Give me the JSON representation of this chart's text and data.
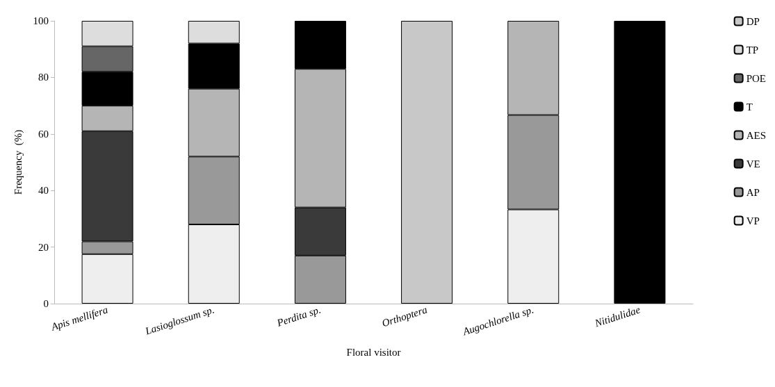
{
  "chart_data": {
    "type": "bar",
    "stacked": true,
    "xlabel": "Floral visitor",
    "ylabel": "Frequency  (%)",
    "categories": [
      "Apis mellifera",
      "Lasioglossum sp.",
      "Perdita sp.",
      "Orthoptera",
      "Augochlorella sp.",
      "Nitidulidae"
    ],
    "series": [
      {
        "name": "VP",
        "color": "#eeeeee",
        "values": [
          17.5,
          28,
          0,
          0,
          33.3,
          0
        ]
      },
      {
        "name": "AP",
        "color": "#999999",
        "values": [
          4.5,
          24,
          17,
          0,
          33.4,
          0
        ]
      },
      {
        "name": "VE",
        "color": "#3a3a3a",
        "values": [
          39,
          0,
          17,
          0,
          0,
          0
        ]
      },
      {
        "name": "AES",
        "color": "#b5b5b5",
        "values": [
          9,
          24,
          49,
          0,
          33.3,
          0
        ]
      },
      {
        "name": "T",
        "color": "#000000",
        "values": [
          12,
          16,
          17,
          0,
          0,
          100
        ]
      },
      {
        "name": "POE",
        "color": "#666666",
        "values": [
          9,
          0,
          0,
          0,
          0,
          0
        ]
      },
      {
        "name": "TP",
        "color": "#dddddd",
        "values": [
          9,
          8,
          0,
          0,
          0,
          0
        ]
      },
      {
        "name": "DP",
        "color": "#c8c8c8",
        "values": [
          0,
          0,
          0,
          100,
          0,
          0
        ]
      }
    ],
    "ylim": [
      0,
      100
    ],
    "yticks": [
      0,
      20,
      40,
      60,
      80,
      100
    ],
    "grid": false,
    "legend": "right"
  }
}
